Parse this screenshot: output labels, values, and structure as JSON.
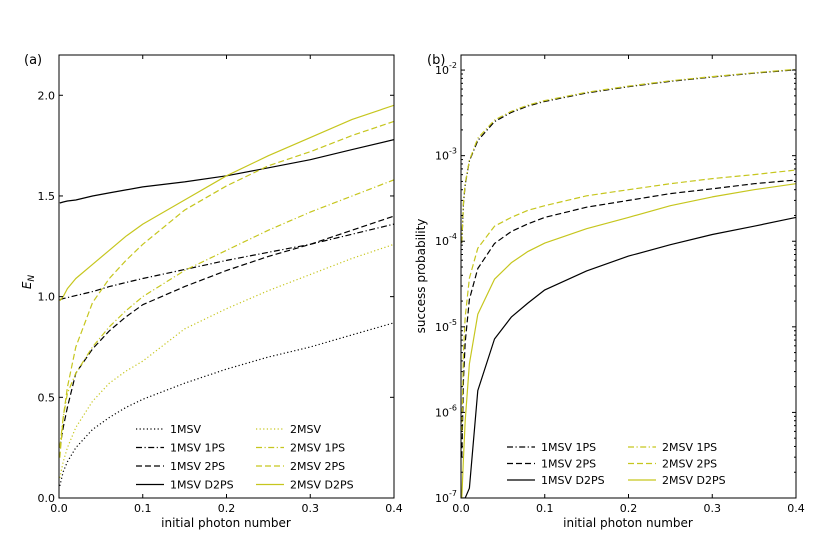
{
  "colors": {
    "black": "#000000",
    "yellow": "#c6c61e"
  },
  "chart_data": [
    {
      "type": "line",
      "panel_label": "(a)",
      "xlabel": "initial photon number",
      "ylabel": "E",
      "ylabel_sub": "N",
      "xlim": [
        0.0,
        0.4
      ],
      "ylim": [
        0.0,
        2.2
      ],
      "yscale": "linear",
      "xticks": [
        0.0,
        0.1,
        0.2,
        0.3,
        0.4
      ],
      "xtick_labels": [
        "0.0",
        "0.1",
        "0.2",
        "0.3",
        "0.4"
      ],
      "yticks": [
        0.0,
        0.5,
        1.0,
        1.5,
        2.0
      ],
      "ytick_labels": [
        "0.0",
        "0.5",
        "1.0",
        "1.5",
        "2.0"
      ],
      "legend_position": "lower-right",
      "x": [
        0.001,
        0.005,
        0.01,
        0.02,
        0.04,
        0.06,
        0.08,
        0.1,
        0.15,
        0.2,
        0.25,
        0.3,
        0.35,
        0.4
      ],
      "series": [
        {
          "name": "1MSV",
          "color": "black",
          "dash": "dotted",
          "values": [
            0.06,
            0.13,
            0.18,
            0.25,
            0.34,
            0.4,
            0.45,
            0.49,
            0.57,
            0.64,
            0.7,
            0.75,
            0.81,
            0.87
          ]
        },
        {
          "name": "1MSV 1PS",
          "color": "black",
          "dash": "dashdot",
          "values": [
            0.985,
            0.99,
            0.995,
            1.005,
            1.025,
            1.05,
            1.07,
            1.09,
            1.135,
            1.18,
            1.22,
            1.26,
            1.31,
            1.36
          ]
        },
        {
          "name": "1MSV 2PS",
          "color": "black",
          "dash": "dashed",
          "values": [
            0.25,
            0.35,
            0.45,
            0.62,
            0.74,
            0.83,
            0.9,
            0.96,
            1.05,
            1.13,
            1.2,
            1.26,
            1.33,
            1.4
          ]
        },
        {
          "name": "1MSV D2PS",
          "color": "black",
          "dash": "solid",
          "values": [
            1.465,
            1.47,
            1.475,
            1.48,
            1.5,
            1.515,
            1.53,
            1.545,
            1.57,
            1.6,
            1.64,
            1.68,
            1.73,
            1.78
          ]
        },
        {
          "name": "2MSV",
          "color": "yellow",
          "dash": "dotted",
          "values": [
            0.1,
            0.18,
            0.25,
            0.35,
            0.48,
            0.57,
            0.63,
            0.68,
            0.84,
            0.94,
            1.03,
            1.11,
            1.19,
            1.26
          ]
        },
        {
          "name": "2MSV 1PS",
          "color": "yellow",
          "dash": "dashdot",
          "values": [
            0.25,
            0.4,
            0.52,
            0.62,
            0.75,
            0.85,
            0.93,
            1.0,
            1.13,
            1.23,
            1.33,
            1.42,
            1.5,
            1.58
          ]
        },
        {
          "name": "2MSV 2PS",
          "color": "yellow",
          "dash": "dashed",
          "values": [
            0.2,
            0.4,
            0.55,
            0.75,
            0.97,
            1.09,
            1.18,
            1.26,
            1.43,
            1.55,
            1.65,
            1.72,
            1.8,
            1.87
          ]
        },
        {
          "name": "2MSV D2PS",
          "color": "yellow",
          "dash": "solid",
          "values": [
            0.98,
            1.0,
            1.04,
            1.09,
            1.16,
            1.23,
            1.3,
            1.36,
            1.48,
            1.6,
            1.7,
            1.79,
            1.88,
            1.95
          ]
        }
      ]
    },
    {
      "type": "line",
      "panel_label": "(b)",
      "xlabel": "initial photon number",
      "ylabel": "success probability",
      "xlim": [
        0.0,
        0.4
      ],
      "ylim": [
        1e-07,
        0.015
      ],
      "yscale": "log",
      "xticks": [
        0.0,
        0.1,
        0.2,
        0.3,
        0.4
      ],
      "xtick_labels": [
        "0.0",
        "0.1",
        "0.2",
        "0.3",
        "0.4"
      ],
      "yticks": [
        1e-07,
        1e-06,
        1e-05,
        0.0001,
        0.001,
        0.01
      ],
      "ytick_mantissa": "10",
      "ytick_exponents": [
        "-7",
        "-6",
        "-5",
        "-4",
        "-3",
        "-2"
      ],
      "legend_position": "lower-right",
      "x": [
        0.001,
        0.003,
        0.005,
        0.01,
        0.02,
        0.04,
        0.06,
        0.08,
        0.1,
        0.15,
        0.2,
        0.25,
        0.3,
        0.35,
        0.4
      ],
      "series": [
        {
          "name": "1MSV 1PS",
          "color": "black",
          "dash": "dashdot",
          "values": [
            9.5e-05,
            0.00028,
            0.00046,
            0.00087,
            0.0015,
            0.0025,
            0.0032,
            0.0038,
            0.0043,
            0.0054,
            0.0064,
            0.0074,
            0.0083,
            0.0092,
            0.0101
          ]
        },
        {
          "name": "1MSV 2PS",
          "color": "black",
          "dash": "dashed",
          "values": [
            3e-07,
            2.5e-06,
            6.6e-06,
            2.1e-05,
            4.8e-05,
            9.4e-05,
            0.00013,
            0.00016,
            0.00019,
            0.00025,
            0.0003,
            0.00036,
            0.00041,
            0.00047,
            0.00052
          ]
        },
        {
          "name": "1MSV D2PS",
          "color": "black",
          "dash": "solid",
          "values": [
            1e-07,
            1e-07,
            1e-07,
            1.3e-07,
            1.8e-06,
            7.2e-06,
            1.3e-05,
            1.9e-05,
            2.7e-05,
            4.5e-05,
            6.7e-05,
            9.1e-05,
            0.00012,
            0.00015,
            0.00019
          ]
        },
        {
          "name": "2MSV 1PS",
          "color": "yellow",
          "dash": "dashdot",
          "values": [
            9.7e-05,
            0.00029,
            0.00047,
            0.00088,
            0.0016,
            0.0026,
            0.0033,
            0.0039,
            0.0044,
            0.0055,
            0.0065,
            0.0075,
            0.0084,
            0.0093,
            0.0102
          ]
        },
        {
          "name": "2MSV 2PS",
          "color": "yellow",
          "dash": "dashed",
          "values": [
            6e-07,
            5.2e-06,
            1.3e-05,
            3.7e-05,
            8.3e-05,
            0.00015,
            0.00019,
            0.00023,
            0.00026,
            0.00034,
            0.0004,
            0.00047,
            0.00054,
            0.0006,
            0.00068
          ]
        },
        {
          "name": "2MSV D2PS",
          "color": "yellow",
          "dash": "solid",
          "values": [
            1e-07,
            3e-07,
            8e-07,
            3.7e-06,
            1.4e-05,
            3.6e-05,
            5.6e-05,
            7.6e-05,
            9.5e-05,
            0.00014,
            0.00019,
            0.00026,
            0.00033,
            0.0004,
            0.00047
          ]
        }
      ]
    }
  ]
}
